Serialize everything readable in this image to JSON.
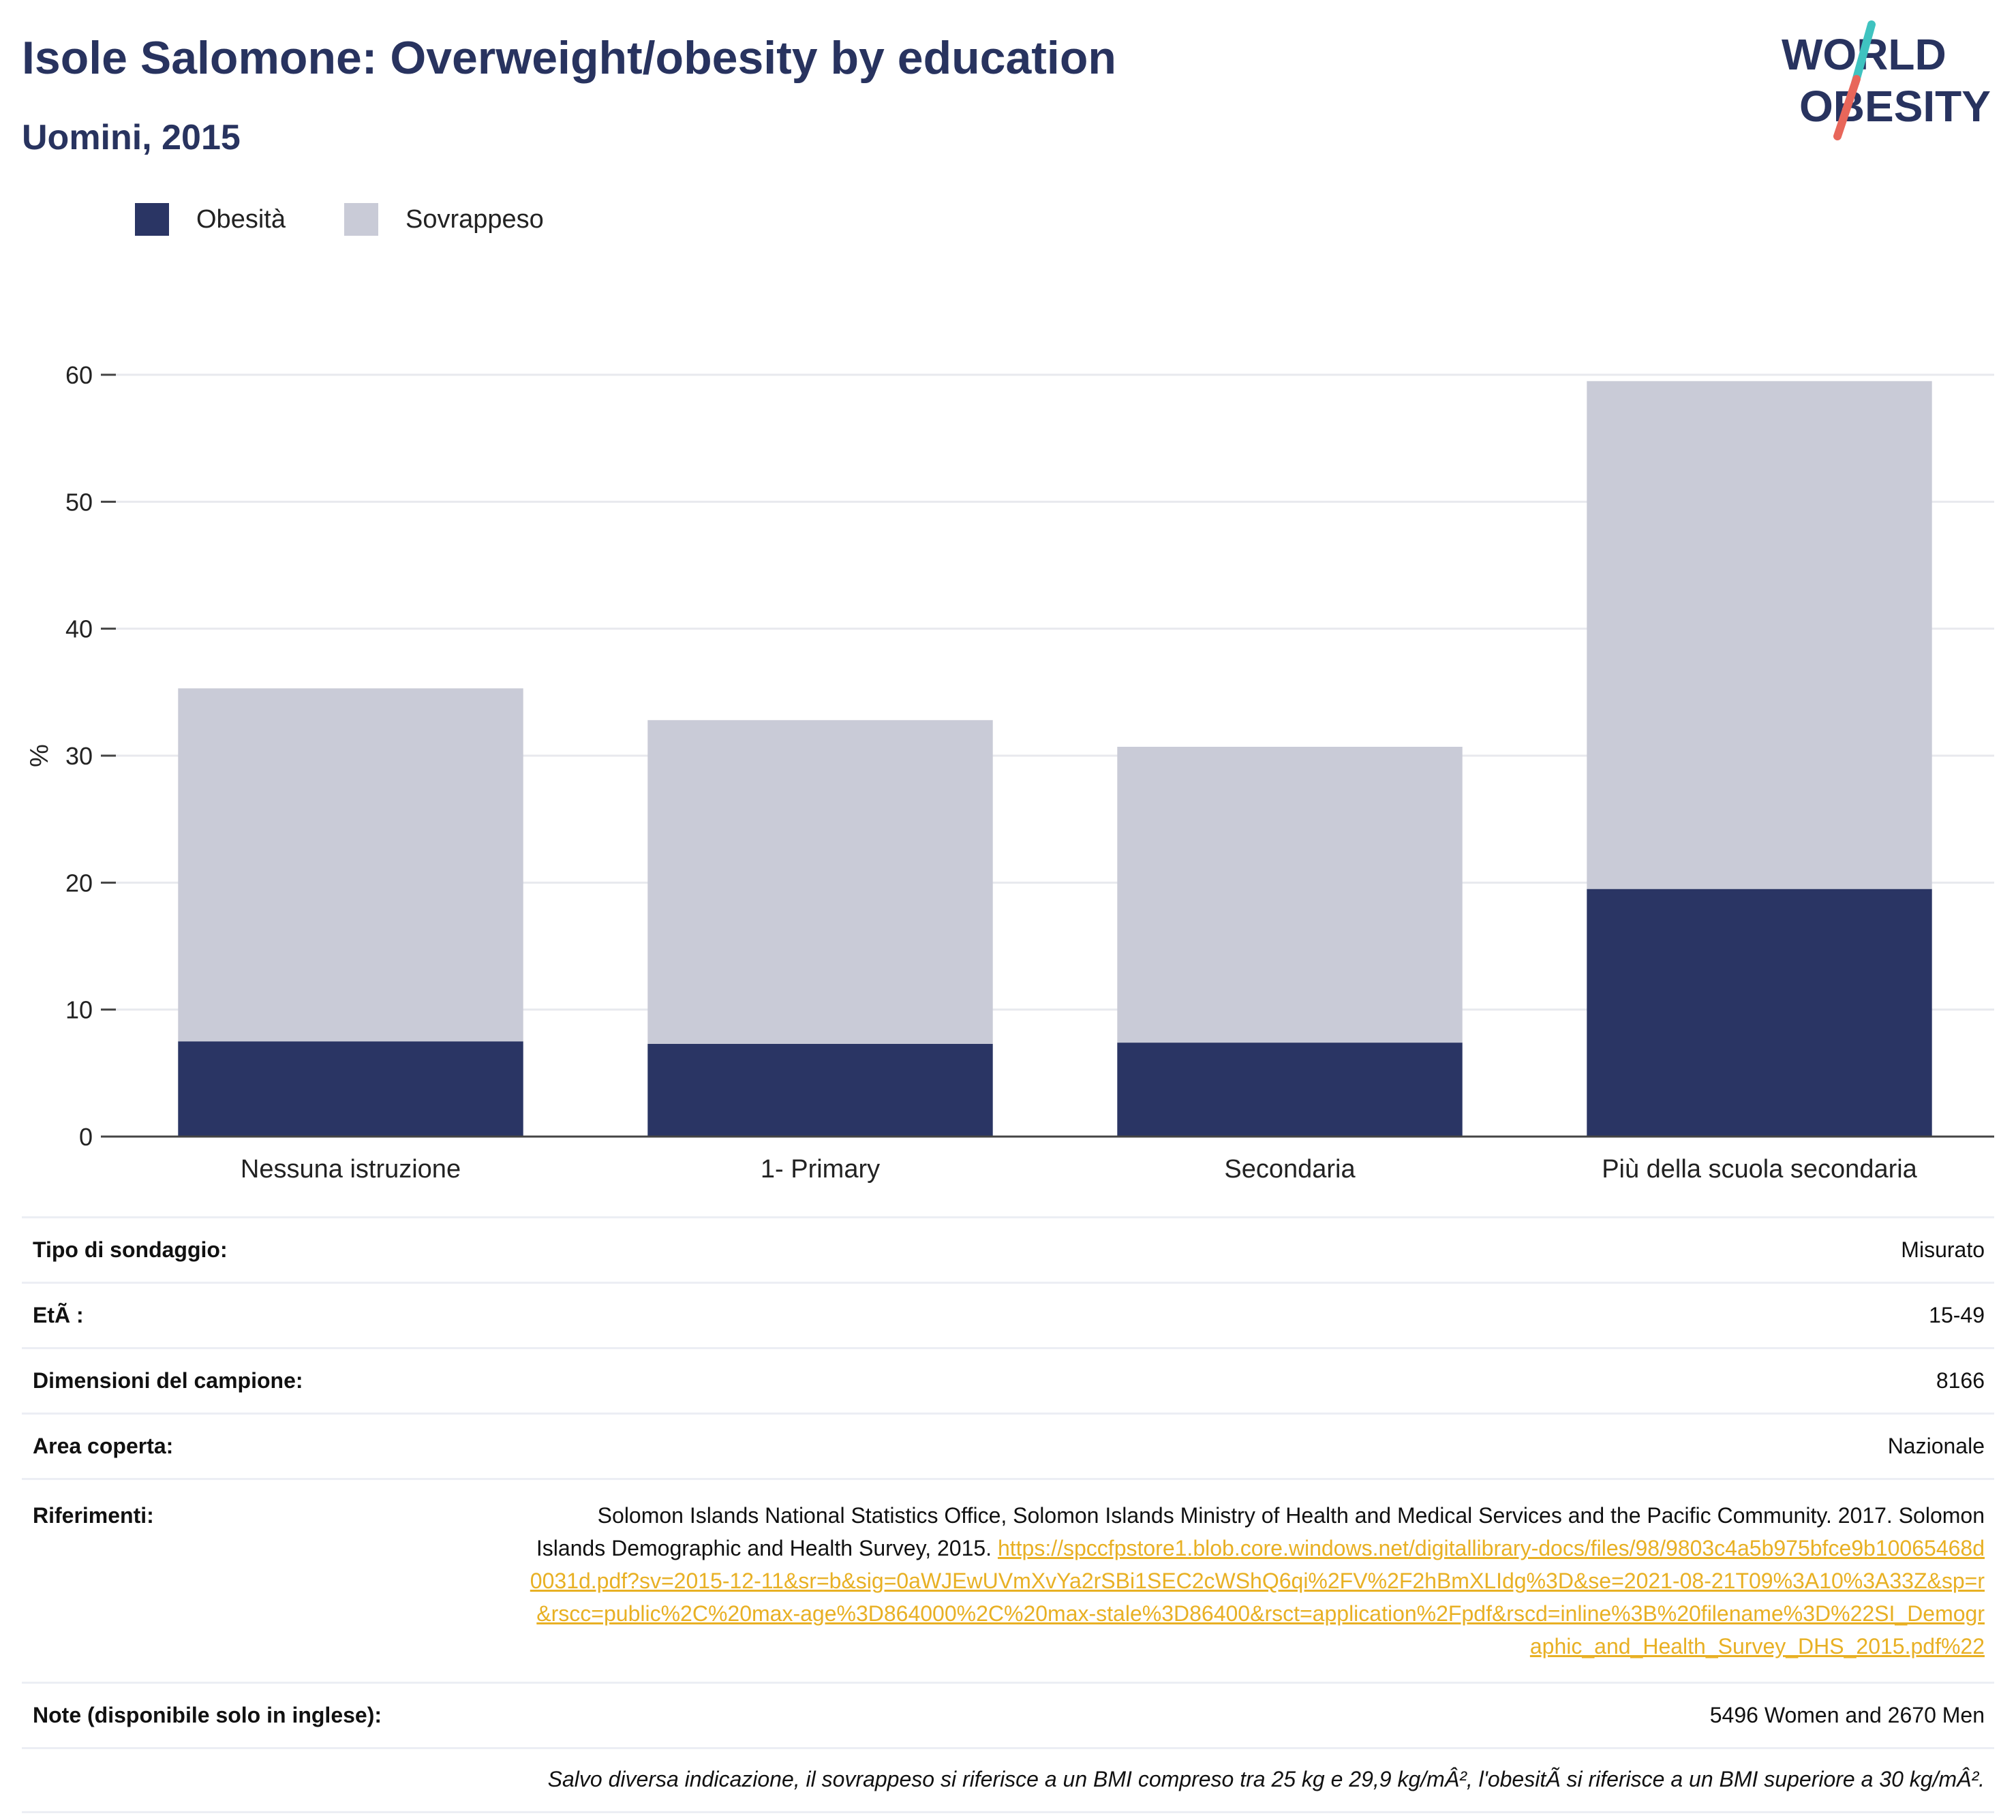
{
  "header": {
    "title": "Isole Salomone: Overweight/obesity by education",
    "subtitle": "Uomini, 2015",
    "logo_line1": "WORLD",
    "logo_line2": "OBESITY"
  },
  "colors": {
    "obesity": "#2a3564",
    "overweight": "#c9cbd7",
    "title": "#28335f",
    "link": "#e8b024",
    "logo_teal": "#3fc3c0",
    "logo_coral": "#e8665a"
  },
  "chart_data": {
    "type": "bar",
    "stacked": true,
    "categories": [
      "Nessuna istruzione",
      "1- Primary",
      "Secondaria",
      "Più della scuola secondaria"
    ],
    "series": [
      {
        "name": "Obesità",
        "values": [
          7.5,
          7.3,
          7.4,
          19.5
        ]
      },
      {
        "name": "Sovrappeso",
        "values": [
          27.8,
          25.5,
          23.3,
          40.0
        ]
      }
    ],
    "ylabel": "%",
    "ylim": [
      0,
      60
    ],
    "yticks": [
      0,
      10,
      20,
      30,
      40,
      50,
      60
    ],
    "grid": true,
    "legend_position": "top-left"
  },
  "info": {
    "rows": [
      {
        "key": "Tipo di sondaggio:",
        "value": "Misurato"
      },
      {
        "key": "EtÃ :",
        "value": "15-49"
      },
      {
        "key": "Dimensioni del campione:",
        "value": "8166"
      },
      {
        "key": "Area coperta:",
        "value": "Nazionale"
      }
    ],
    "references": {
      "key": "Riferimenti:",
      "text": "Solomon Islands National Statistics Office, Solomon Islands Ministry of Health and Medical Services and the Pacific Community. 2017. Solomon Islands Demographic and Health Survey, 2015.",
      "link": "https://spccfpstore1.blob.core.windows.net/digitallibrary-docs/files/98/9803c4a5b975bfce9b10065468d0031d.pdf?sv=2015-12-11&sr=b&sig=0aWJEwUVmXvYa2rSBi1SEC2cWShQ6qi%2FV%2F2hBmXLIdg%3D&se=2021-08-21T09%3A10%3A33Z&sp=r&rscc=public%2C%20max-age%3D864000%2C%20max-stale%3D86400&rsct=application%2Fpdf&rscd=inline%3B%20filename%3D%22SI_Demographic_and_Health_Survey_DHS_2015.pdf%22"
    },
    "notes": {
      "key": "Note (disponibile solo in inglese):",
      "value": "5496 Women and 2670 Men"
    },
    "footnote": "Salvo diversa indicazione, il sovrappeso si riferisce a un BMI compreso tra 25 kg e 29,9 kg/mÂ², l'obesitÃ  si riferisce a un BMI superiore a 30 kg/mÂ²."
  }
}
